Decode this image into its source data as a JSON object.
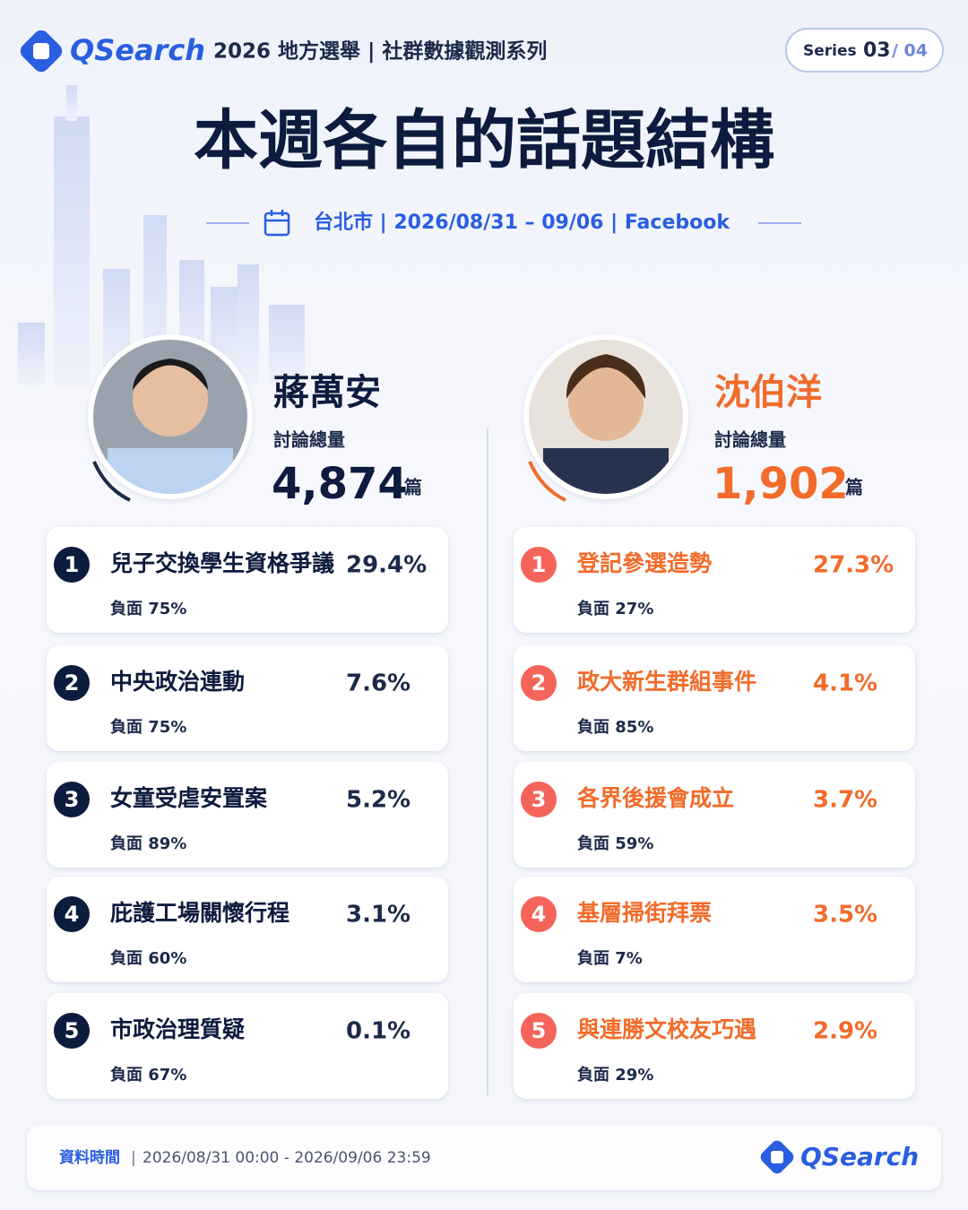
{
  "header": {
    "brand": "QSearch",
    "series_title": "2026 地方選舉 | 社群數據觀測系列",
    "series_label": "Series",
    "series_current": "03",
    "series_total": "/ 04"
  },
  "title": "本週各自的話題結構",
  "subtitle": "台北市 | 2026/08/31 – 09/06 | Facebook",
  "candidates": [
    {
      "name": "蔣萬安",
      "volume_label": "討論總量",
      "volume": "4,874",
      "unit": "篇",
      "topics": [
        {
          "rank": "1",
          "topic": "兒子交換學生資格爭議",
          "share": "29.4%",
          "negative": "負面 75%"
        },
        {
          "rank": "2",
          "topic": "中央政治連動",
          "share": "7.6%",
          "negative": "負面 75%"
        },
        {
          "rank": "3",
          "topic": "女童受虐安置案",
          "share": "5.2%",
          "negative": "負面 89%"
        },
        {
          "rank": "4",
          "topic": "庇護工場關懷行程",
          "share": "3.1%",
          "negative": "負面 60%"
        },
        {
          "rank": "5",
          "topic": "市政治理質疑",
          "share": "0.1%",
          "negative": "負面 67%"
        }
      ]
    },
    {
      "name": "沈伯洋",
      "volume_label": "討論總量",
      "volume": "1,902",
      "unit": "篇",
      "topics": [
        {
          "rank": "1",
          "topic": "登記參選造勢",
          "share": "27.3%",
          "negative": "負面 27%"
        },
        {
          "rank": "2",
          "topic": "政大新生群組事件",
          "share": "4.1%",
          "negative": "負面 85%"
        },
        {
          "rank": "3",
          "topic": "各界後援會成立",
          "share": "3.7%",
          "negative": "負面 59%"
        },
        {
          "rank": "4",
          "topic": "基層掃街拜票",
          "share": "3.5%",
          "negative": "負面 7%"
        },
        {
          "rank": "5",
          "topic": "與連勝文校友巧遇",
          "share": "2.9%",
          "negative": "負面 29%"
        }
      ]
    }
  ],
  "footer": {
    "label": "資料時間",
    "separator": "|",
    "range": "2026/08/31 00:00 - 2026/09/06 23:59",
    "brand": "QSearch"
  }
}
